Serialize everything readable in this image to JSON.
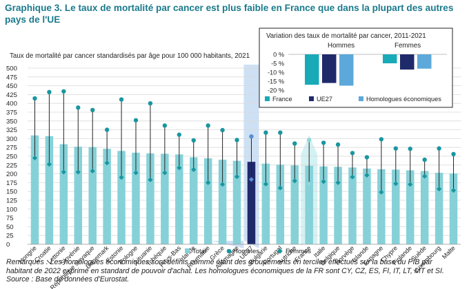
{
  "title": "Graphique 3. Le taux de mortalité par cancer est plus faible en France que dans la plupart des autres pays de l'UE",
  "colors": {
    "total": "#86d1d8",
    "hommes": "#1a96a0",
    "femmes": "#1a96a0",
    "eu_highlight": "#1f2a6b",
    "france_highlight": "#9fe0e4",
    "column_band": "#c6dbf2",
    "inset_france": "#19aab8",
    "inset_ue27": "#1f2a6b",
    "inset_peers": "#5da8da",
    "title": "#1a7a8c"
  },
  "chart_data": [
    {
      "type": "bar",
      "title": "",
      "subtitle": "Taux de mortalité par cancer standardisés par âge pour 100 000 habitants, 2021",
      "ylim": [
        0,
        500
      ],
      "yticks": [
        "0",
        "25",
        "50",
        "75",
        "100",
        "125",
        "150",
        "175",
        "200",
        "225",
        "250",
        "275",
        "300",
        "325",
        "350",
        "375",
        "400",
        "425",
        "450",
        "475",
        "500"
      ],
      "grid": true,
      "legend_placement": "bottom",
      "categories": [
        "Hongrie",
        "Croatie",
        "Lettonie",
        "Slovénie",
        "République slovaque",
        "Danemark",
        "Estonie",
        "Pologne",
        "Lituanie",
        "Tchéquie",
        "Pays-Bas",
        "Irlande",
        "Roumanie",
        "Grèce",
        "Allemagne",
        "UE27",
        "Bulgarie",
        "Portugal",
        "Autriche",
        "France",
        "Italie",
        "Belgique",
        "Norvège",
        "Islande",
        "Espagne",
        "Chypre",
        "Finlande",
        "Suède",
        "Luxembourg",
        "Malte"
      ],
      "highlight": [
        "UE27",
        "France"
      ],
      "series": [
        {
          "name": "Total",
          "values": [
            309,
            307,
            284,
            277,
            276,
            271,
            265,
            260,
            258,
            257,
            255,
            247,
            244,
            240,
            237,
            234,
            229,
            226,
            224,
            223,
            221,
            220,
            218,
            215,
            213,
            212,
            210,
            208,
            203,
            201
          ]
        },
        {
          "name": "Hommes",
          "values": [
            414,
            432,
            434,
            388,
            381,
            325,
            411,
            352,
            400,
            337,
            311,
            295,
            337,
            324,
            296,
            306,
            317,
            317,
            286,
            296,
            288,
            283,
            259,
            247,
            298,
            272,
            271,
            240,
            272,
            256
          ]
        },
        {
          "name": "Femmes",
          "values": [
            245,
            227,
            205,
            205,
            208,
            231,
            190,
            203,
            183,
            203,
            217,
            212,
            175,
            170,
            192,
            184,
            171,
            160,
            180,
            171,
            178,
            175,
            191,
            196,
            148,
            172,
            170,
            193,
            157,
            153
          ]
        }
      ]
    },
    {
      "type": "bar",
      "title": "Variation des taux de mortalité par cancer, 2011-2021",
      "groups": [
        "Hommes",
        "Femmes"
      ],
      "ylim": [
        -20,
        0
      ],
      "yticks": [
        "0 %",
        "-5 %",
        "-10 %",
        "-15 %",
        "-20 %"
      ],
      "legend_placement": "bottom",
      "series": [
        {
          "name": "France",
          "values": [
            -17,
            -5
          ]
        },
        {
          "name": "UE27",
          "values": [
            -16,
            -8.5
          ]
        },
        {
          "name": "Homologues économiques",
          "values": [
            -17.5,
            -8
          ]
        }
      ]
    }
  ],
  "notes": [
    "Remarques : Les homologues économiques sont définis comme étant des groupements en terciles effectués sur la base du PIB par",
    "habitant de 2022 exprimé en standard de pouvoir d'achat. Les homologues économiques de la FR sont CY, CZ, ES, FI, IT, LT, MT et SI.",
    "Source : Base de données d'Eurostat."
  ]
}
